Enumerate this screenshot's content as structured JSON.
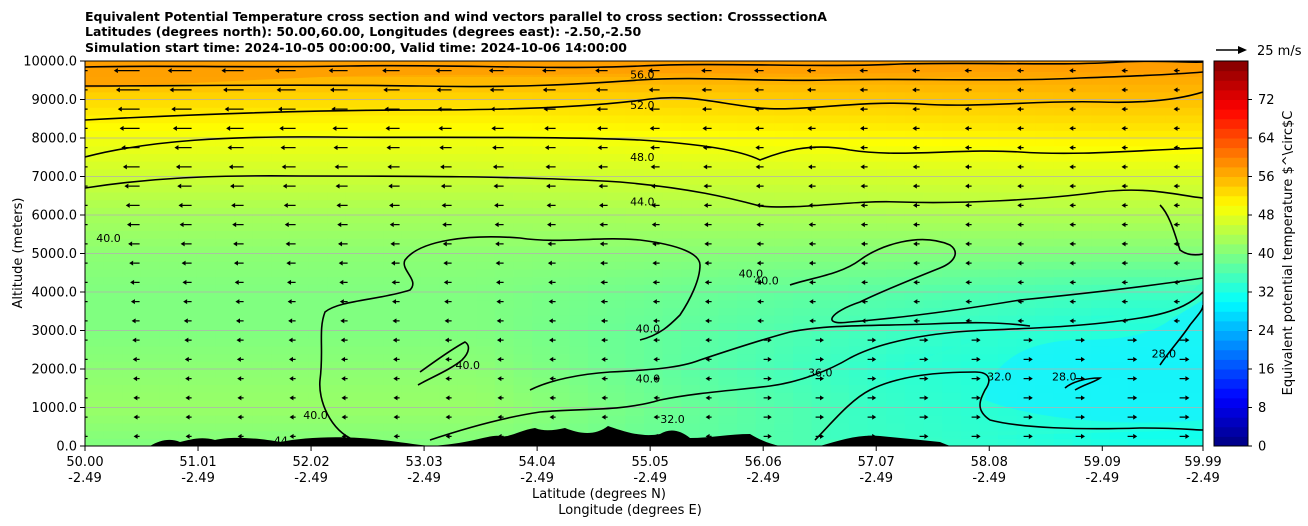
{
  "chart_data": {
    "type": "heatmap",
    "title_lines": [
      "Equivalent Potential Temperature cross section and wind vectors parallel to cross section: CrosssectionA",
      "Latitudes (degrees north): 50.00,60.00, Longitudes (degrees east): -2.50,-2.50",
      "Simulation start time: 2024-10-05 00:00:00, Valid time: 2024-10-06 14:00:00"
    ],
    "xlabel_lines": [
      "Latitude (degrees N)",
      "Longitude (degrees E)"
    ],
    "ylabel": "Altitude (meters)",
    "colorbar_label": "Equivalent potential temperature $^\\circ$C",
    "x_ticks": [
      {
        "lat": "50.00",
        "lon": "-2.49",
        "v": 50.0
      },
      {
        "lat": "51.01",
        "lon": "-2.49",
        "v": 51.01
      },
      {
        "lat": "52.02",
        "lon": "-2.49",
        "v": 52.02
      },
      {
        "lat": "53.03",
        "lon": "-2.49",
        "v": 53.03
      },
      {
        "lat": "54.04",
        "lon": "-2.49",
        "v": 54.04
      },
      {
        "lat": "55.05",
        "lon": "-2.49",
        "v": 55.05
      },
      {
        "lat": "56.06",
        "lon": "-2.49",
        "v": 56.06
      },
      {
        "lat": "57.07",
        "lon": "-2.49",
        "v": 57.07
      },
      {
        "lat": "58.08",
        "lon": "-2.49",
        "v": 58.08
      },
      {
        "lat": "59.09",
        "lon": "-2.49",
        "v": 59.09
      },
      {
        "lat": "59.99",
        "lon": "-2.49",
        "v": 59.99
      }
    ],
    "y_ticks": [
      "0.0",
      "1000.0",
      "2000.0",
      "3000.0",
      "4000.0",
      "5000.0",
      "6000.0",
      "7000.0",
      "8000.0",
      "9000.0",
      "10000.0"
    ],
    "xlim": [
      50.0,
      59.99
    ],
    "ylim": [
      0,
      10000
    ],
    "colorbar_ticks": [
      "0",
      "8",
      "16",
      "24",
      "32",
      "40",
      "48",
      "56",
      "64",
      "72"
    ],
    "colorbar_range": [
      0,
      80
    ],
    "colormap": "jet",
    "grid": "horizontal",
    "wind_reference_label": "25 m/s",
    "contour_labels": [
      {
        "text": "56.0",
        "lat": 54.98,
        "alt": 9550
      },
      {
        "text": "52.0",
        "lat": 54.98,
        "alt": 8750
      },
      {
        "text": "48.0",
        "lat": 54.98,
        "alt": 7400
      },
      {
        "text": "44.0",
        "lat": 54.98,
        "alt": 6250
      },
      {
        "text": "40.0",
        "lat": 50.21,
        "alt": 5300
      },
      {
        "text": "40.0",
        "lat": 55.95,
        "alt": 4380
      },
      {
        "text": "40.0",
        "lat": 56.09,
        "alt": 4200
      },
      {
        "text": "40.0",
        "lat": 55.03,
        "alt": 2950
      },
      {
        "text": "40.0",
        "lat": 53.42,
        "alt": 2000
      },
      {
        "text": "40.0",
        "lat": 55.03,
        "alt": 1650
      },
      {
        "text": "40.0",
        "lat": 52.06,
        "alt": 700
      },
      {
        "text": "36.0",
        "lat": 56.57,
        "alt": 1800
      },
      {
        "text": "32.0",
        "lat": 55.25,
        "alt": 600
      },
      {
        "text": "32.0",
        "lat": 58.17,
        "alt": 1700
      },
      {
        "text": "28.0",
        "lat": 58.75,
        "alt": 1700
      },
      {
        "text": "28.0",
        "lat": 59.64,
        "alt": 2300
      },
      {
        "text": "44",
        "lat": 51.75,
        "alt": 40
      }
    ],
    "theta_e_field_approx": {
      "altitudes": [
        0,
        1000,
        2000,
        3000,
        4000,
        5000,
        6000,
        7000,
        8000,
        9000,
        10000
      ],
      "south_column": [
        40,
        42,
        41,
        40,
        40,
        41,
        43,
        46,
        49,
        53,
        58
      ],
      "north_column": [
        32,
        30,
        29,
        32,
        35,
        40,
        44,
        47,
        51,
        55,
        58
      ]
    }
  }
}
